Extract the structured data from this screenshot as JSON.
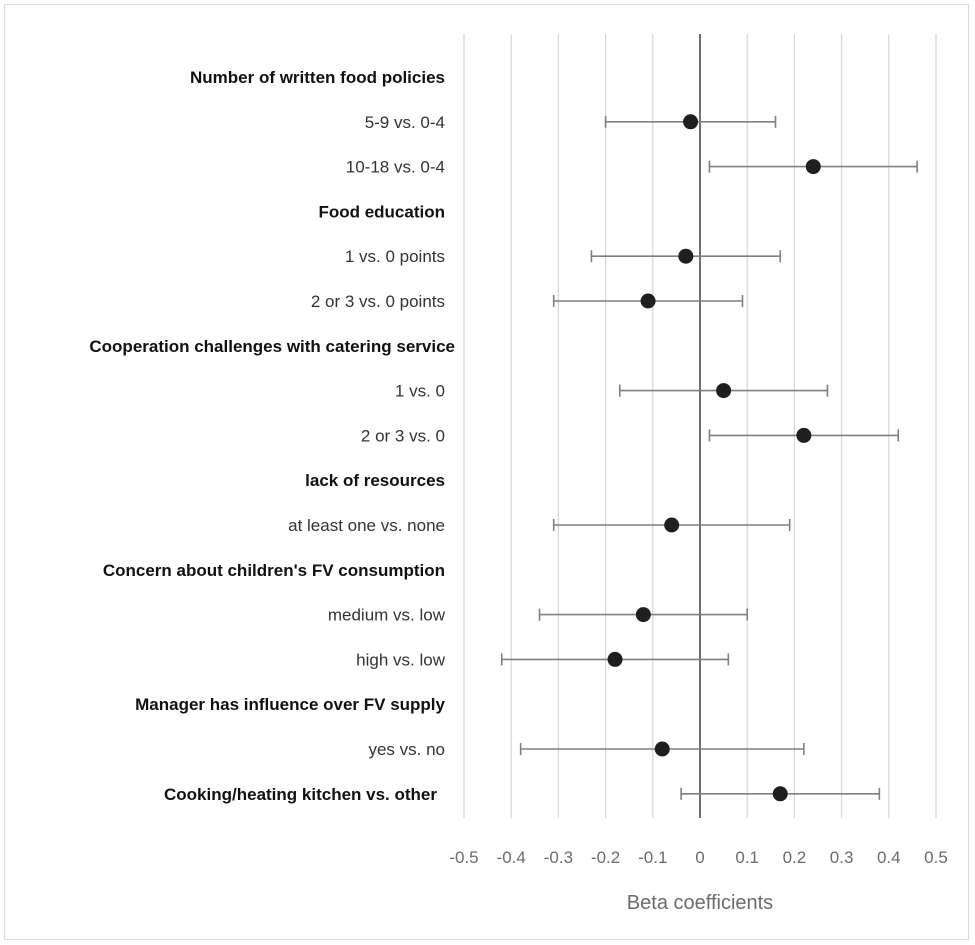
{
  "chart_data": {
    "type": "scatter",
    "subtype": "forest-plot",
    "title": "",
    "xlabel": "Beta coefficients",
    "ylabel": "",
    "xlim": [
      -0.5,
      0.5
    ],
    "xticks": [
      -0.5,
      -0.4,
      -0.3,
      -0.2,
      -0.1,
      0,
      0.1,
      0.2,
      0.3,
      0.4,
      0.5
    ],
    "xtick_labels": [
      "-0.5",
      "-0.4",
      "-0.3",
      "-0.2",
      "-0.1",
      "0",
      "0.1",
      "0.2",
      "0.3",
      "0.4",
      "0.5"
    ],
    "grid": "vertical",
    "colors": {
      "marker": "#1f1f1f",
      "errorbar": "#7f7f7f",
      "grid": "#d9d9d9",
      "zero_line": "#404040"
    },
    "rows": [
      {
        "label": "Number of written food policies",
        "header": true
      },
      {
        "label": "5-9 vs. 0-4",
        "header": false,
        "estimate": -0.02,
        "lower": -0.2,
        "upper": 0.16
      },
      {
        "label": "10-18 vs. 0-4",
        "header": false,
        "estimate": 0.24,
        "lower": 0.02,
        "upper": 0.46
      },
      {
        "label": "Food education",
        "header": true
      },
      {
        "label": "1 vs. 0 points",
        "header": false,
        "estimate": -0.03,
        "lower": -0.23,
        "upper": 0.17
      },
      {
        "label": "2 or 3 vs. 0 points",
        "header": false,
        "estimate": -0.11,
        "lower": -0.31,
        "upper": 0.09
      },
      {
        "label": "Cooperation challenges with catering service",
        "header": true
      },
      {
        "label": "1 vs. 0",
        "header": false,
        "estimate": 0.05,
        "lower": -0.17,
        "upper": 0.27
      },
      {
        "label": "2 or 3 vs. 0",
        "header": false,
        "estimate": 0.22,
        "lower": 0.02,
        "upper": 0.42
      },
      {
        "label": "lack of resources",
        "header": true
      },
      {
        "label": "at least one vs. none",
        "header": false,
        "estimate": -0.06,
        "lower": -0.31,
        "upper": 0.19
      },
      {
        "label": "Concern about children's FV consumption",
        "header": true
      },
      {
        "label": "medium vs. low",
        "header": false,
        "estimate": -0.12,
        "lower": -0.34,
        "upper": 0.1
      },
      {
        "label": "high vs. low",
        "header": false,
        "estimate": -0.18,
        "lower": -0.42,
        "upper": 0.06
      },
      {
        "label": "Manager has influence over FV supply",
        "header": true
      },
      {
        "label": "yes vs. no",
        "header": false,
        "estimate": -0.08,
        "lower": -0.38,
        "upper": 0.22
      },
      {
        "label": "Cooking/heating kitchen vs. other",
        "header": true,
        "estimate": 0.17,
        "lower": -0.04,
        "upper": 0.38
      }
    ]
  }
}
